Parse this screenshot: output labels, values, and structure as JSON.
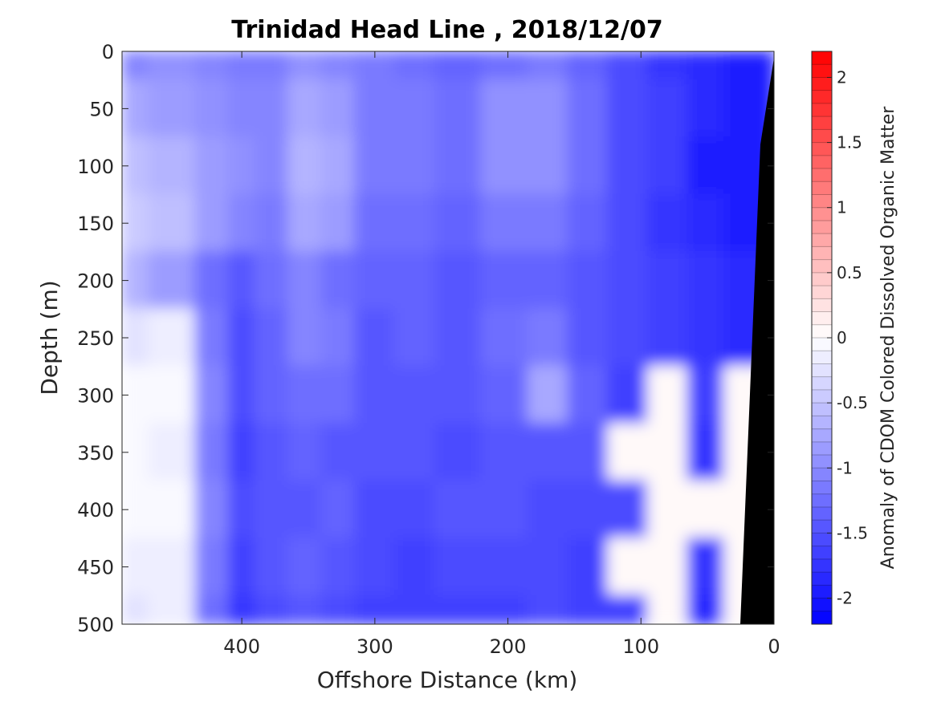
{
  "chart_data": {
    "type": "heatmap",
    "title": "Trinidad Head Line , 2018/12/07",
    "xlabel": "Offshore Distance (km)",
    "ylabel": "Depth (m)",
    "xlim": [
      490,
      0
    ],
    "ylim": [
      500,
      0
    ],
    "x_ticks": [
      "400",
      "300",
      "200",
      "100",
      "0"
    ],
    "y_ticks": [
      "0",
      "50",
      "100",
      "150",
      "200",
      "250",
      "300",
      "350",
      "400",
      "450",
      "500"
    ],
    "colorbar": {
      "label": "Anomaly of CDOM Colored Dissolved Organic Matter",
      "range": [
        -2.2,
        2.2
      ],
      "levels": 44,
      "ticks": [
        "2",
        "1.5",
        "1",
        "0.5",
        "0",
        "-0.5",
        "-1",
        "-1.5",
        "-2"
      ],
      "negative_color": "#0000ff",
      "zero_color": "#ffffff",
      "positive_color": "#ff0000"
    },
    "grid": false,
    "bathymetry_color": "#000000",
    "distance_km": [
      490,
      450,
      420,
      400,
      380,
      350,
      330,
      300,
      270,
      240,
      200,
      170,
      140,
      110,
      80,
      50,
      25
    ],
    "depth_m": [
      0,
      50,
      100,
      150,
      200,
      250,
      300,
      350,
      400,
      450,
      500
    ],
    "anomaly": [
      [
        -1.1,
        -1.0,
        -1.1,
        -1.2,
        -1.2,
        -1.0,
        -1.1,
        -1.2,
        -1.3,
        -1.4,
        -1.3,
        -1.2,
        -1.4,
        -1.6,
        -1.8,
        -1.9,
        -2.0
      ],
      [
        -0.8,
        -0.9,
        -1.0,
        -1.1,
        -1.1,
        -0.8,
        -0.9,
        -1.2,
        -1.2,
        -1.3,
        -1.0,
        -1.0,
        -1.3,
        -1.6,
        -1.7,
        -1.9,
        -2.0
      ],
      [
        -0.6,
        -0.7,
        -0.9,
        -1.0,
        -1.1,
        -0.7,
        -0.8,
        -1.2,
        -1.2,
        -1.3,
        -1.0,
        -1.0,
        -1.3,
        -1.6,
        -1.7,
        -2.0,
        -2.0
      ],
      [
        -0.5,
        -0.6,
        -0.9,
        -1.1,
        -1.2,
        -0.8,
        -0.9,
        -1.3,
        -1.3,
        -1.4,
        -1.2,
        -1.2,
        -1.4,
        -1.6,
        -1.8,
        -1.9,
        -2.0
      ],
      [
        -0.7,
        -0.9,
        -1.3,
        -1.5,
        -1.3,
        -1.1,
        -1.3,
        -1.4,
        -1.4,
        -1.5,
        -1.4,
        -1.4,
        -1.5,
        -1.6,
        -1.7,
        -1.8,
        -1.9
      ],
      [
        -0.3,
        -0.2,
        -1.2,
        -1.6,
        -1.4,
        -1.1,
        -1.2,
        -1.5,
        -1.4,
        -1.5,
        -1.3,
        -1.2,
        -1.5,
        -1.6,
        -1.7,
        -1.8,
        -1.9
      ],
      [
        -0.1,
        -0.1,
        -1.1,
        -1.6,
        -1.4,
        -1.3,
        -1.3,
        -1.5,
        -1.5,
        -1.5,
        -1.4,
        -0.8,
        -1.4,
        -1.7,
        0.0,
        -1.7,
        0.0
      ],
      [
        -0.1,
        -0.2,
        -1.2,
        -1.7,
        -1.5,
        -1.4,
        -1.5,
        -1.5,
        -1.5,
        -1.6,
        -1.5,
        -1.5,
        -1.5,
        0.0,
        0.0,
        -1.8,
        0.0
      ],
      [
        -0.1,
        -0.1,
        -1.1,
        -1.6,
        -1.5,
        -1.5,
        -1.4,
        -1.6,
        -1.6,
        -1.5,
        -1.5,
        -1.6,
        -1.6,
        -1.6,
        0.0,
        0.0,
        0.0
      ],
      [
        -0.2,
        -0.2,
        -1.2,
        -1.7,
        -1.5,
        -1.4,
        -1.5,
        -1.6,
        -1.7,
        -1.6,
        -1.6,
        -1.6,
        -1.7,
        0.0,
        0.0,
        -1.8,
        0.0
      ],
      [
        -0.3,
        -0.2,
        -1.3,
        -1.8,
        -1.6,
        -1.5,
        -1.6,
        -1.7,
        -1.7,
        -1.7,
        -1.7,
        -1.6,
        -1.7,
        -1.7,
        0.0,
        -1.9,
        0.0
      ]
    ]
  }
}
